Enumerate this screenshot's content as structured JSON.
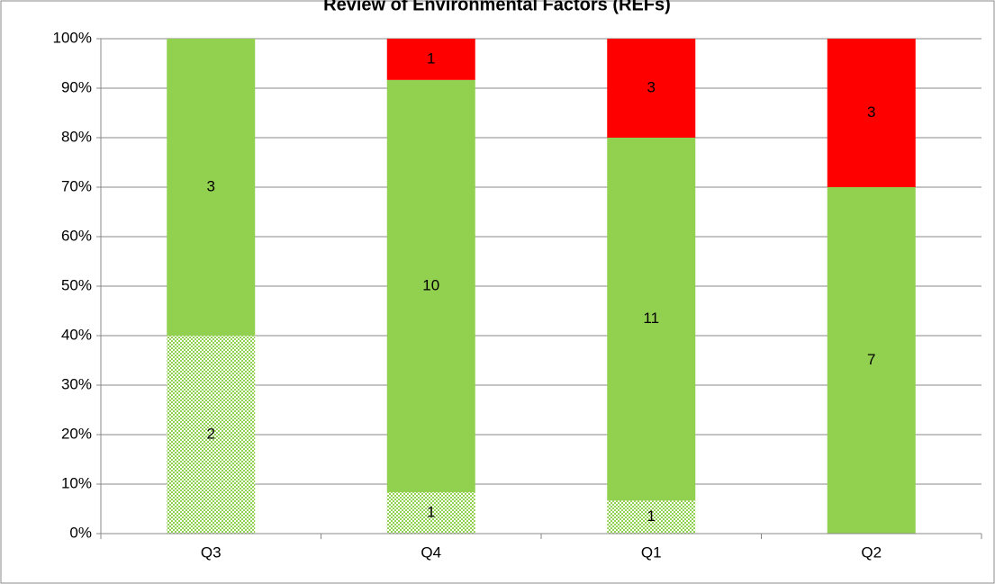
{
  "chart_data": {
    "type": "stacked_percent_bar",
    "title": "Review of Environmental Factors (REFs)",
    "categories": [
      "Q3",
      "Q4",
      "Q1",
      "Q2"
    ],
    "series": [
      {
        "color": "#92d050",
        "pattern": "dots",
        "values": [
          2,
          1,
          1,
          0
        ]
      },
      {
        "color": "#92d050",
        "values": [
          3,
          10,
          11,
          7
        ]
      },
      {
        "color": "#ff0000",
        "values": [
          0,
          1,
          3,
          3
        ]
      }
    ],
    "ylim": [
      0,
      100
    ],
    "yticks": [
      {
        "value": 0,
        "label": "0%"
      },
      {
        "value": 10,
        "label": "10%"
      },
      {
        "value": 20,
        "label": "20%"
      },
      {
        "value": 30,
        "label": "30%"
      },
      {
        "value": 40,
        "label": "40%"
      },
      {
        "value": 50,
        "label": "50%"
      },
      {
        "value": 60,
        "label": "60%"
      },
      {
        "value": 70,
        "label": "70%"
      },
      {
        "value": 80,
        "label": "80%"
      },
      {
        "value": 90,
        "label": "90%"
      },
      {
        "value": 100,
        "label": "100%"
      }
    ],
    "grid": true
  }
}
